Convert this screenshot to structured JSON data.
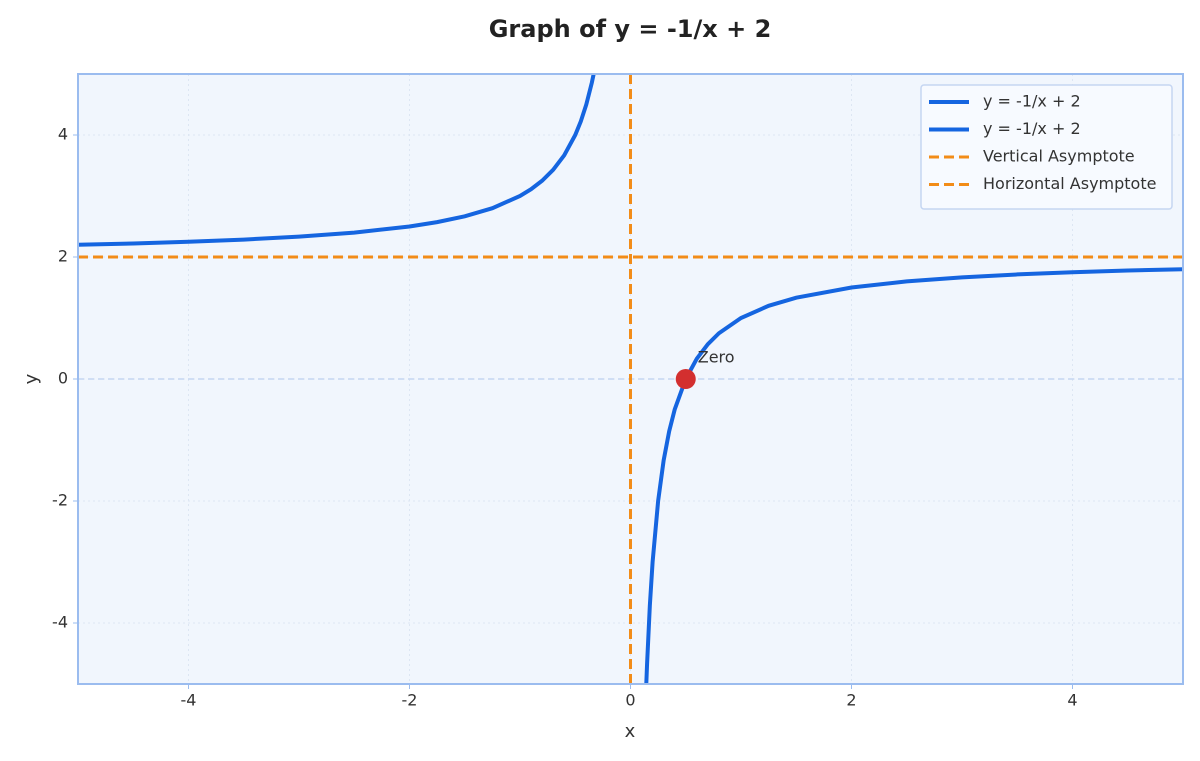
{
  "chart_data": {
    "type": "line",
    "title": "Graph of y = -1/x + 2",
    "xlabel": "x",
    "ylabel": "y",
    "xlim": [
      -5,
      5
    ],
    "ylim": [
      -5,
      5
    ],
    "xticks": [
      -4,
      -2,
      0,
      2,
      4
    ],
    "yticks": [
      -4,
      -2,
      0,
      2,
      4
    ],
    "grid": true,
    "legend": "upper right",
    "series": [
      {
        "name": "y = -1/x + 2",
        "color": "#1565e0",
        "x": [
          -5,
          -4.5,
          -4,
          -3.5,
          -3,
          -2.5,
          -2,
          -1.75,
          -1.5,
          -1.25,
          -1,
          -0.9,
          -0.8,
          -0.7,
          -0.6,
          -0.5,
          -0.45,
          -0.4,
          -0.35,
          -0.3333
        ],
        "values": [
          2.2,
          2.2222,
          2.25,
          2.2857,
          2.3333,
          2.4,
          2.5,
          2.5714,
          2.6667,
          2.8,
          3,
          3.1111,
          3.25,
          3.4286,
          3.6667,
          4,
          4.2222,
          4.5,
          4.8571,
          5.0003
        ]
      },
      {
        "name": "y = -1/x + 2",
        "color": "#1565e0",
        "x": [
          0.1429,
          0.15,
          0.175,
          0.2,
          0.25,
          0.3,
          0.35,
          0.4,
          0.5,
          0.6,
          0.7,
          0.8,
          1,
          1.25,
          1.5,
          2,
          2.5,
          3,
          3.5,
          4,
          4.5,
          5
        ],
        "values": [
          -4.998,
          -4.6667,
          -3.7143,
          -3,
          -2,
          -1.3333,
          -0.8571,
          -0.5,
          0,
          0.3333,
          0.5714,
          0.75,
          1,
          1.2,
          1.3333,
          1.5,
          1.6,
          1.6667,
          1.7143,
          1.75,
          1.7778,
          1.8
        ]
      }
    ],
    "asymptotes": [
      {
        "name": "Vertical Asymptote",
        "orientation": "vertical",
        "value": 0,
        "color": "#f28c18"
      },
      {
        "name": "Horizontal Asymptote",
        "orientation": "horizontal",
        "value": 2,
        "color": "#f28c18"
      }
    ],
    "reference_lines": [
      {
        "y": 0,
        "color": "#c5d6f2"
      }
    ],
    "points": [
      {
        "label": "Zero",
        "x": 0.5,
        "y": 0,
        "color": "#d32f2f"
      }
    ]
  }
}
